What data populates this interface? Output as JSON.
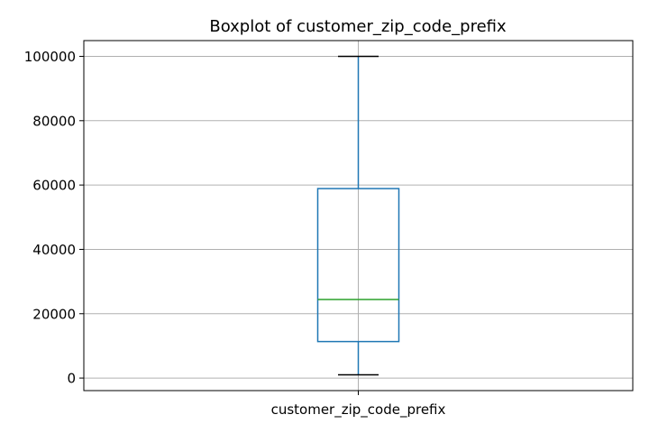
{
  "chart_data": {
    "type": "box",
    "title": "Boxplot of customer_zip_code_prefix",
    "xlabel": "",
    "ylabel": "",
    "categories": [
      "customer_zip_code_prefix"
    ],
    "boxes": [
      {
        "category": "customer_zip_code_prefix",
        "whisker_low": 1003,
        "q1": 11347,
        "median": 24416,
        "q3": 58900,
        "whisker_high": 99990
      }
    ],
    "yticks": [
      0,
      20000,
      40000,
      60000,
      80000,
      100000
    ],
    "ytick_labels": [
      "0",
      "20000",
      "40000",
      "60000",
      "80000",
      "100000"
    ],
    "ylim": [
      -3900,
      104900
    ],
    "grid": true,
    "legend": "none",
    "colors": {
      "box": "#1f77b4",
      "whisker": "#1f77b4",
      "cap": "#000000",
      "median": "#2ca02c",
      "grid": "#b0b0b0",
      "axes": "#000000"
    }
  }
}
